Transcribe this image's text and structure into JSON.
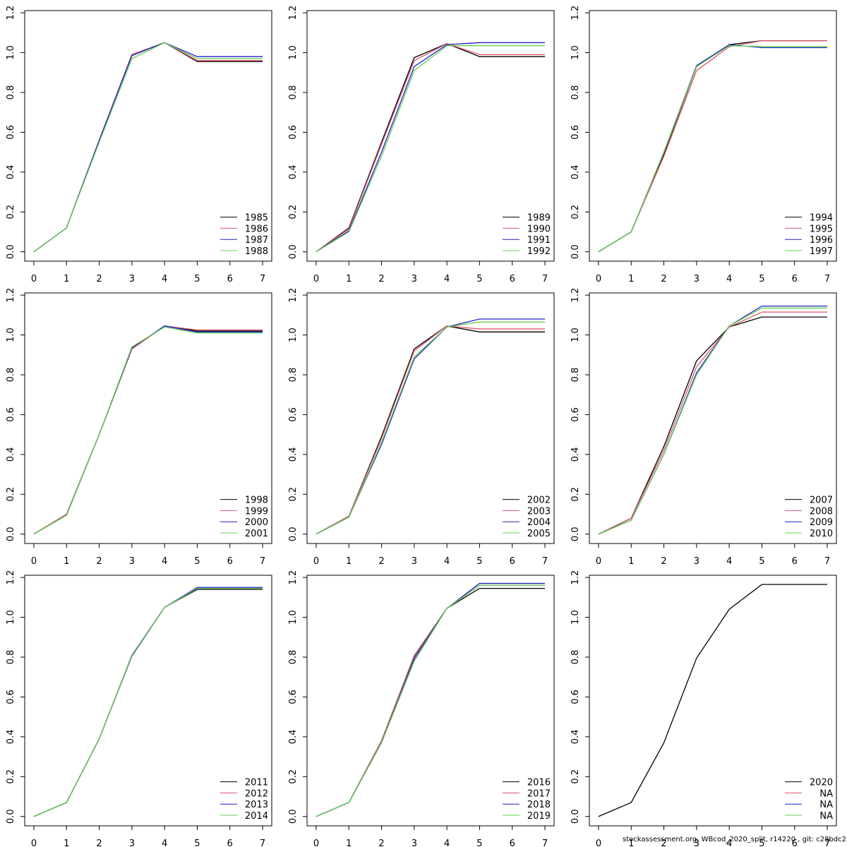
{
  "chart_data": [
    {
      "type": "line",
      "x": [
        0,
        1,
        2,
        3,
        4,
        5,
        6,
        7
      ],
      "xlim": [
        -0.28,
        7.28
      ],
      "ylim": [
        -0.047,
        1.211
      ],
      "xticks": [
        0,
        1,
        2,
        3,
        4,
        5,
        6,
        7
      ],
      "yticks": [
        {
          "value": 0,
          "label": "0.0"
        },
        0.2,
        0.4,
        0.6,
        0.8,
        {
          "value": 1,
          "label": "1.0"
        },
        1.2
      ],
      "legend": "bottomright",
      "series": [
        {
          "name": "1985",
          "color": "#000000",
          "values": [
            0,
            0.12,
            0.56,
            0.99,
            1.05,
            0.955,
            0.955,
            0.955
          ]
        },
        {
          "name": "1986",
          "color": "#df536b",
          "values": [
            0,
            0.12,
            0.56,
            0.99,
            1.05,
            0.96,
            0.96,
            0.96
          ]
        },
        {
          "name": "1987",
          "color": "#2020c8",
          "values": [
            0,
            0.12,
            0.56,
            0.985,
            1.05,
            0.98,
            0.98,
            0.98
          ]
        },
        {
          "name": "1988",
          "color": "#61d04f",
          "values": [
            0,
            0.12,
            0.55,
            0.97,
            1.05,
            0.97,
            0.97,
            0.97
          ]
        }
      ]
    },
    {
      "type": "line",
      "x": [
        0,
        1,
        2,
        3,
        4,
        5,
        6,
        7
      ],
      "xlim": [
        -0.28,
        7.28
      ],
      "ylim": [
        -0.047,
        1.211
      ],
      "xticks": [
        0,
        1,
        2,
        3,
        4,
        5,
        6,
        7
      ],
      "yticks": [
        {
          "value": 0,
          "label": "0.0"
        },
        0.2,
        0.4,
        0.6,
        0.8,
        {
          "value": 1,
          "label": "1.0"
        },
        1.2
      ],
      "legend": "bottomright",
      "series": [
        {
          "name": "1989",
          "color": "#000000",
          "values": [
            0,
            0.12,
            0.55,
            0.975,
            1.045,
            0.98,
            0.98,
            0.98
          ]
        },
        {
          "name": "1990",
          "color": "#df536b",
          "values": [
            0,
            0.115,
            0.54,
            0.96,
            1.045,
            0.99,
            0.99,
            0.99
          ]
        },
        {
          "name": "1991",
          "color": "#2020c8",
          "values": [
            0,
            0.105,
            0.5,
            0.93,
            1.04,
            1.05,
            1.05,
            1.05
          ]
        },
        {
          "name": "1992",
          "color": "#61d04f",
          "values": [
            0,
            0.1,
            0.48,
            0.91,
            1.035,
            1.035,
            1.035,
            1.035
          ]
        }
      ]
    },
    {
      "type": "line",
      "x": [
        0,
        1,
        2,
        3,
        4,
        5,
        6,
        7
      ],
      "xlim": [
        -0.28,
        7.28
      ],
      "ylim": [
        -0.047,
        1.211
      ],
      "xticks": [
        0,
        1,
        2,
        3,
        4,
        5,
        6,
        7
      ],
      "yticks": [
        {
          "value": 0,
          "label": "0.0"
        },
        0.2,
        0.4,
        0.6,
        0.8,
        {
          "value": 1,
          "label": "1.0"
        },
        1.2
      ],
      "legend": "bottomright",
      "series": [
        {
          "name": "1994",
          "color": "#000000",
          "values": [
            0,
            0.1,
            0.49,
            0.93,
            1.04,
            1.06,
            1.06,
            1.06
          ]
        },
        {
          "name": "1995",
          "color": "#df536b",
          "values": [
            0,
            0.1,
            0.48,
            0.91,
            1.03,
            1.06,
            1.06,
            1.06
          ]
        },
        {
          "name": "1996",
          "color": "#2020c8",
          "values": [
            0,
            0.1,
            0.5,
            0.935,
            1.04,
            1.025,
            1.025,
            1.025
          ]
        },
        {
          "name": "1997",
          "color": "#61d04f",
          "values": [
            0,
            0.1,
            0.5,
            0.93,
            1.035,
            1.03,
            1.03,
            1.03
          ]
        }
      ]
    },
    {
      "type": "line",
      "x": [
        0,
        1,
        2,
        3,
        4,
        5,
        6,
        7
      ],
      "xlim": [
        -0.28,
        7.28
      ],
      "ylim": [
        -0.047,
        1.211
      ],
      "xticks": [
        0,
        1,
        2,
        3,
        4,
        5,
        6,
        7
      ],
      "yticks": [
        {
          "value": 0,
          "label": "0.0"
        },
        0.2,
        0.4,
        0.6,
        0.8,
        {
          "value": 1,
          "label": "1.0"
        },
        1.2
      ],
      "legend": "bottomright",
      "series": [
        {
          "name": "1998",
          "color": "#000000",
          "values": [
            0,
            0.1,
            0.5,
            0.93,
            1.045,
            1.02,
            1.02,
            1.02
          ]
        },
        {
          "name": "1999",
          "color": "#df536b",
          "values": [
            0,
            0.1,
            0.5,
            0.93,
            1.045,
            1.025,
            1.025,
            1.025
          ]
        },
        {
          "name": "2000",
          "color": "#2020c8",
          "values": [
            0,
            0.095,
            0.5,
            0.935,
            1.045,
            1.015,
            1.015,
            1.015
          ]
        },
        {
          "name": "2001",
          "color": "#61d04f",
          "values": [
            0,
            0.095,
            0.5,
            0.94,
            1.04,
            1.01,
            1.01,
            1.01
          ]
        }
      ]
    },
    {
      "type": "line",
      "x": [
        0,
        1,
        2,
        3,
        4,
        5,
        6,
        7
      ],
      "xlim": [
        -0.28,
        7.28
      ],
      "ylim": [
        -0.047,
        1.211
      ],
      "xticks": [
        0,
        1,
        2,
        3,
        4,
        5,
        6,
        7
      ],
      "yticks": [
        {
          "value": 0,
          "label": "0.0"
        },
        0.2,
        0.4,
        0.6,
        0.8,
        {
          "value": 1,
          "label": "1.0"
        },
        1.2
      ],
      "legend": "bottomright",
      "series": [
        {
          "name": "2002",
          "color": "#000000",
          "values": [
            0,
            0.09,
            0.49,
            0.93,
            1.045,
            1.015,
            1.015,
            1.015
          ]
        },
        {
          "name": "2003",
          "color": "#df536b",
          "values": [
            0,
            0.09,
            0.48,
            0.92,
            1.045,
            1.03,
            1.03,
            1.03
          ]
        },
        {
          "name": "2004",
          "color": "#2020c8",
          "values": [
            0,
            0.085,
            0.45,
            0.88,
            1.04,
            1.08,
            1.08,
            1.08
          ]
        },
        {
          "name": "2005",
          "color": "#61d04f",
          "values": [
            0,
            0.085,
            0.46,
            0.89,
            1.04,
            1.065,
            1.065,
            1.065
          ]
        }
      ]
    },
    {
      "type": "line",
      "x": [
        0,
        1,
        2,
        3,
        4,
        5,
        6,
        7
      ],
      "xlim": [
        -0.28,
        7.28
      ],
      "ylim": [
        -0.047,
        1.211
      ],
      "xticks": [
        0,
        1,
        2,
        3,
        4,
        5,
        6,
        7
      ],
      "yticks": [
        {
          "value": 0,
          "label": "0.0"
        },
        0.2,
        0.4,
        0.6,
        0.8,
        {
          "value": 1,
          "label": "1.0"
        },
        1.2
      ],
      "legend": "bottomright",
      "series": [
        {
          "name": "2007",
          "color": "#000000",
          "values": [
            0,
            0.08,
            0.44,
            0.87,
            1.04,
            1.09,
            1.09,
            1.09
          ]
        },
        {
          "name": "2008",
          "color": "#df536b",
          "values": [
            0,
            0.08,
            0.42,
            0.84,
            1.04,
            1.115,
            1.115,
            1.115
          ]
        },
        {
          "name": "2009",
          "color": "#2020c8",
          "values": [
            0,
            0.07,
            0.4,
            0.81,
            1.045,
            1.145,
            1.145,
            1.145
          ]
        },
        {
          "name": "2010",
          "color": "#61d04f",
          "values": [
            0,
            0.07,
            0.4,
            0.8,
            1.045,
            1.135,
            1.135,
            1.135
          ]
        }
      ]
    },
    {
      "type": "line",
      "x": [
        0,
        1,
        2,
        3,
        4,
        5,
        6,
        7
      ],
      "xlim": [
        -0.28,
        7.28
      ],
      "ylim": [
        -0.047,
        1.211
      ],
      "xticks": [
        0,
        1,
        2,
        3,
        4,
        5,
        6,
        7
      ],
      "yticks": [
        {
          "value": 0,
          "label": "0.0"
        },
        0.2,
        0.4,
        0.6,
        0.8,
        {
          "value": 1,
          "label": "1.0"
        },
        1.2
      ],
      "legend": "bottomright",
      "series": [
        {
          "name": "2011",
          "color": "#000000",
          "values": [
            0,
            0.07,
            0.39,
            0.81,
            1.05,
            1.14,
            1.14,
            1.14
          ]
        },
        {
          "name": "2012",
          "color": "#df536b",
          "values": [
            0,
            0.07,
            0.39,
            0.81,
            1.05,
            1.145,
            1.145,
            1.145
          ]
        },
        {
          "name": "2013",
          "color": "#2020c8",
          "values": [
            0,
            0.07,
            0.39,
            0.805,
            1.05,
            1.15,
            1.15,
            1.15
          ]
        },
        {
          "name": "2014",
          "color": "#61d04f",
          "values": [
            0,
            0.07,
            0.39,
            0.81,
            1.05,
            1.145,
            1.145,
            1.145
          ]
        }
      ]
    },
    {
      "type": "line",
      "x": [
        0,
        1,
        2,
        3,
        4,
        5,
        6,
        7
      ],
      "xlim": [
        -0.28,
        7.28
      ],
      "ylim": [
        -0.047,
        1.211
      ],
      "xticks": [
        0,
        1,
        2,
        3,
        4,
        5,
        6,
        7
      ],
      "yticks": [
        {
          "value": 0,
          "label": "0.0"
        },
        0.2,
        0.4,
        0.6,
        0.8,
        {
          "value": 1,
          "label": "1.0"
        },
        1.2
      ],
      "legend": "bottomright",
      "series": [
        {
          "name": "2016",
          "color": "#000000",
          "values": [
            0,
            0.07,
            0.38,
            0.805,
            1.045,
            1.145,
            1.145,
            1.145
          ]
        },
        {
          "name": "2017",
          "color": "#df536b",
          "values": [
            0,
            0.07,
            0.38,
            0.8,
            1.045,
            1.16,
            1.16,
            1.16
          ]
        },
        {
          "name": "2018",
          "color": "#2020c8",
          "values": [
            0,
            0.07,
            0.37,
            0.79,
            1.045,
            1.17,
            1.17,
            1.17
          ]
        },
        {
          "name": "2019",
          "color": "#61d04f",
          "values": [
            0,
            0.07,
            0.37,
            0.78,
            1.045,
            1.16,
            1.16,
            1.16
          ]
        }
      ]
    },
    {
      "type": "line",
      "x": [
        0,
        1,
        2,
        3,
        4,
        5,
        6,
        7
      ],
      "xlim": [
        -0.28,
        7.28
      ],
      "ylim": [
        -0.047,
        1.211
      ],
      "xticks": [
        0,
        1,
        2,
        3,
        4,
        5,
        6,
        7
      ],
      "yticks": [
        {
          "value": 0,
          "label": "0.0"
        },
        0.2,
        0.4,
        0.6,
        0.8,
        {
          "value": 1,
          "label": "1.0"
        },
        1.2
      ],
      "legend": "bottomright",
      "series": [
        {
          "name": "2020",
          "color": "#000000",
          "values": [
            0,
            0.07,
            0.37,
            0.795,
            1.04,
            1.165,
            1.165,
            1.165
          ]
        },
        {
          "name": "NA",
          "color": "#df536b",
          "values": [
            null,
            null,
            null,
            null,
            null,
            null,
            null,
            null
          ]
        },
        {
          "name": "NA",
          "color": "#2020c8",
          "values": [
            null,
            null,
            null,
            null,
            null,
            null,
            null,
            null
          ]
        },
        {
          "name": "NA",
          "color": "#61d04f",
          "values": [
            null,
            null,
            null,
            null,
            null,
            null,
            null,
            null
          ]
        }
      ]
    }
  ],
  "footer": "stockassessment.org, WBcod_2020_split, r14220 , git: c28bdc2"
}
